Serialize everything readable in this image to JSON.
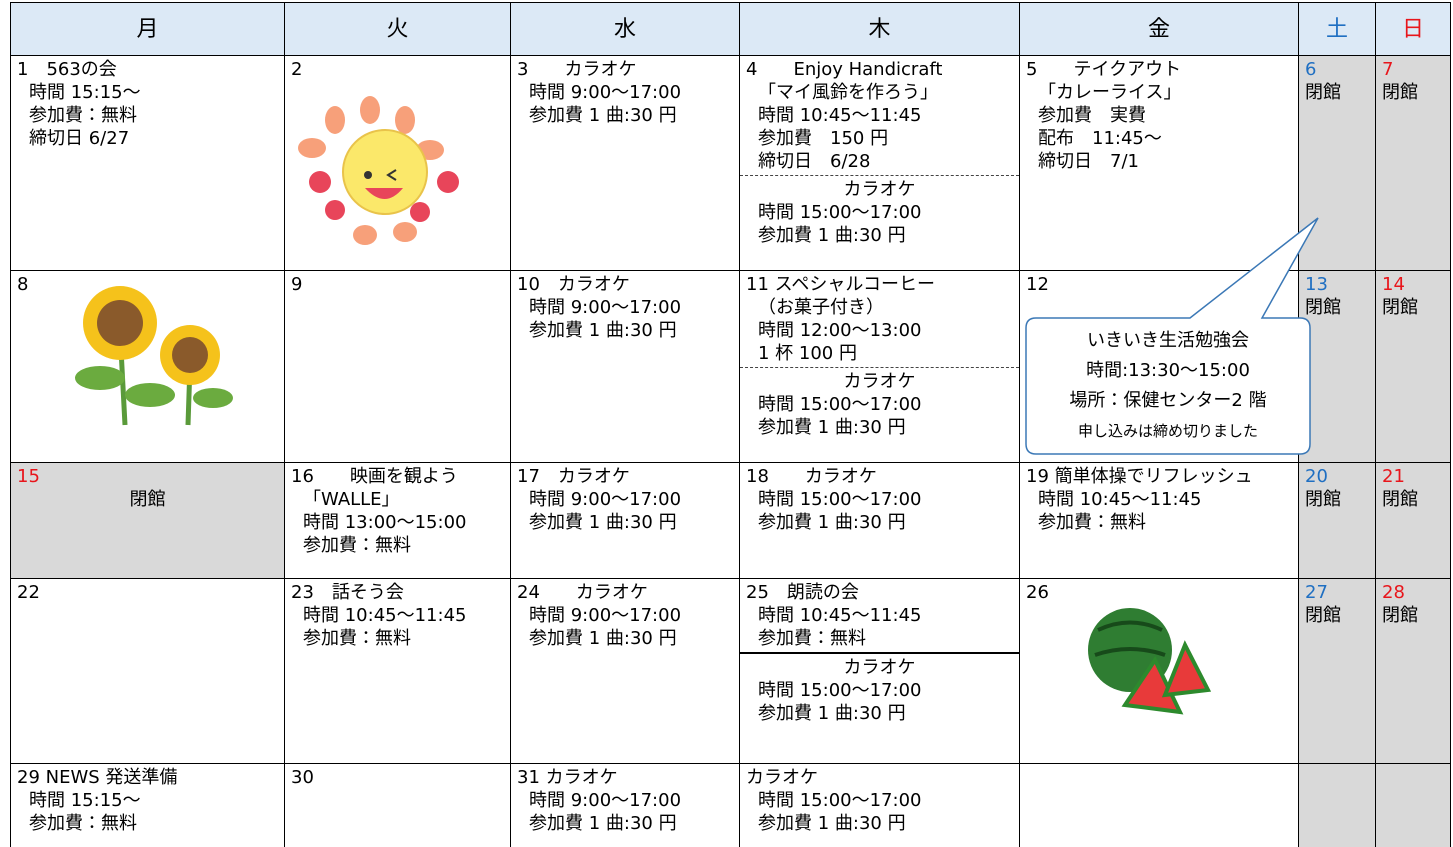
{
  "header": [
    "月",
    "火",
    "水",
    "木",
    "金",
    "土",
    "日"
  ],
  "rows": [
    [
      [
        [
          "1　563の会",
          "時間 15:15～",
          "参加費：無料",
          "締切日 6/27"
        ]
      ],
      [
        [
          "2"
        ]
      ],
      [
        [
          "3　　カラオケ",
          "時間 9:00～17:00",
          "参加費 1 曲:30 円"
        ]
      ],
      [
        [
          "4　　Enjoy Handicraft",
          "「マイ風鈴を作ろう」",
          "時間 10:45～11:45",
          "参加費　150 円",
          "締切日　6/28"
        ],
        [
          "カラオケ",
          "時間 15:00～17:00",
          "参加費 1 曲:30 円"
        ]
      ],
      [
        [
          "5　　テイクアウト",
          "「カレーライス」",
          "参加費　実費",
          "配布　11:45～",
          "締切日　7/1"
        ]
      ],
      [
        [
          "6",
          "閉館"
        ]
      ],
      [
        [
          "7",
          "閉館"
        ]
      ]
    ],
    [
      [
        [
          "8"
        ]
      ],
      [
        [
          "9"
        ]
      ],
      [
        [
          "10　カラオケ",
          "時間 9:00～17:00",
          "参加費 1 曲:30 円"
        ]
      ],
      [
        [
          "11 スペシャルコーヒー",
          "（お菓子付き）",
          "時間 12:00～13:00",
          "1 杯 100 円"
        ],
        [
          "カラオケ",
          "時間 15:00～17:00",
          "参加費 1 曲:30 円"
        ]
      ],
      [
        [
          "12"
        ]
      ],
      [
        [
          "13",
          "閉館"
        ]
      ],
      [
        [
          "14",
          "閉館"
        ]
      ]
    ],
    [
      [
        [
          "15",
          "閉館"
        ]
      ],
      [
        [
          "16　　映画を観よう",
          "「WALLE」",
          "時間 13:00～15:00",
          "参加費：無料"
        ]
      ],
      [
        [
          "17　カラオケ",
          "時間 9:00～17:00",
          "参加費 1 曲:30 円"
        ]
      ],
      [
        [
          "18　　カラオケ",
          "時間 15:00～17:00",
          "参加費 1 曲:30 円"
        ]
      ],
      [
        [
          "19 簡単体操でリフレッシュ",
          "時間 10:45～11:45",
          "参加費：無料"
        ]
      ],
      [
        [
          "20",
          "閉館"
        ]
      ],
      [
        [
          "21",
          "閉館"
        ]
      ]
    ],
    [
      [
        [
          "22"
        ]
      ],
      [
        [
          "23　話そう会",
          "時間 10:45～11:45",
          "参加費：無料"
        ]
      ],
      [
        [
          "24　　カラオケ",
          "時間 9:00～17:00",
          "参加費 1 曲:30 円"
        ]
      ],
      [
        [
          "25　朗読の会",
          "時間 10:45～11:45",
          "参加費：無料"
        ],
        [
          "カラオケ",
          "時間 15:00～17:00",
          "参加費 1 曲:30 円"
        ]
      ],
      [
        [
          "26"
        ]
      ],
      [
        [
          "27",
          "閉館"
        ]
      ],
      [
        [
          "28",
          "閉館"
        ]
      ]
    ],
    [
      [
        [
          "29 NEWS 発送準備",
          "時間 15:15～",
          "参加費：無料"
        ]
      ],
      [
        [
          "30"
        ]
      ],
      [
        [
          "31 カラオケ",
          "時間 9:00～17:00",
          "参加費 1 曲:30 円"
        ]
      ],
      [
        [
          "カラオケ",
          "時間 15:00～17:00",
          "参加費 1 曲:30 円"
        ]
      ],
      [],
      [],
      []
    ]
  ],
  "callout": [
    "いきいき生活勉強会",
    "時間:13:30～15:00",
    "場所：保健センター2 階",
    "申し込みは締め切りました"
  ]
}
